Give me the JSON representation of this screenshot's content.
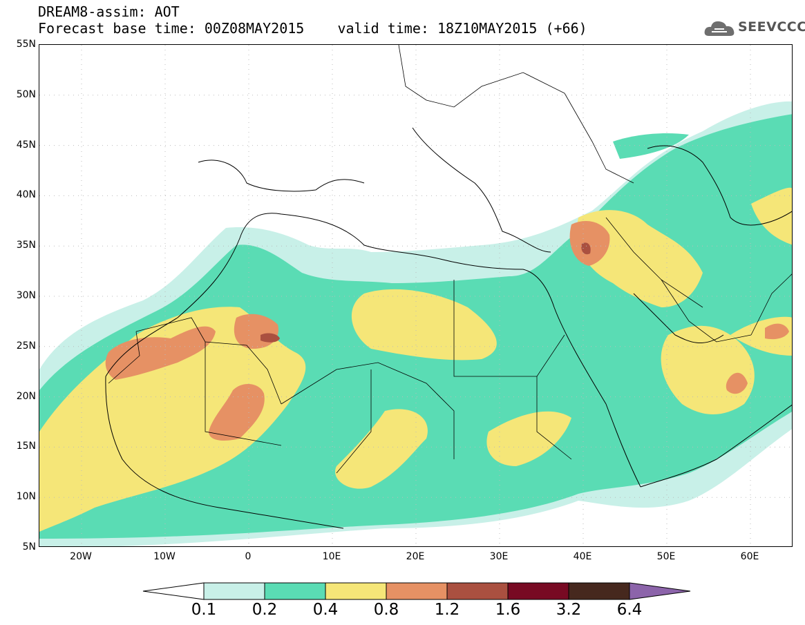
{
  "header": {
    "line1": "DREAM8-assim: AOT",
    "line2": "Forecast base time: 00Z08MAY2015    valid time: 18Z10MAY2015 (+66)"
  },
  "logo": {
    "text": "SEEVCCC",
    "icon": "cloud-icon"
  },
  "map": {
    "lat_labels": [
      "55N",
      "50N",
      "45N",
      "40N",
      "35N",
      "30N",
      "25N",
      "20N",
      "15N",
      "10N",
      "5N"
    ],
    "lon_labels": [
      "20W",
      "10W",
      "0",
      "10E",
      "20E",
      "30E",
      "40E",
      "50E",
      "60E"
    ],
    "gridlines": "dotted"
  },
  "colorbar": {
    "boundaries": [
      "0.1",
      "0.2",
      "0.4",
      "0.8",
      "1.2",
      "1.6",
      "3.2",
      "6.4"
    ],
    "colors": [
      "#ffffff",
      "#c8f0e8",
      "#5adcb4",
      "#f5e678",
      "#e69164",
      "#aa5040",
      "#780a23",
      "#46281e",
      "#8c64aa"
    ]
  },
  "colors": {
    "level1": "#c8f0e8",
    "level2": "#5adcb4",
    "level3": "#f5e678",
    "level4": "#e69164",
    "level5": "#aa5040",
    "level6": "#780a23"
  }
}
